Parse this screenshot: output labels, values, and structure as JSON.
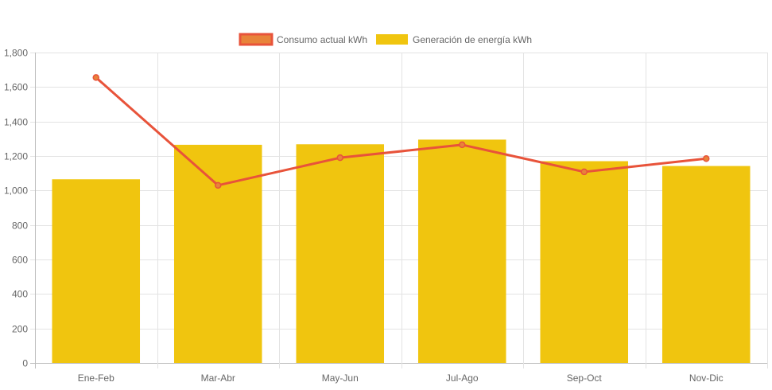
{
  "chart_data": {
    "type": "bar",
    "categories": [
      "Ene-Feb",
      "Mar-Abr",
      "May-Jun",
      "Jul-Ago",
      "Sep-Oct",
      "Nov-Dic"
    ],
    "series": [
      {
        "name": "Consumo actual kWh",
        "type": "line",
        "values": [
          1655,
          1030,
          1190,
          1265,
          1108,
          1185
        ],
        "color": "#e8533a",
        "point_fill": "#e8833a"
      },
      {
        "name": "Generación de energía kWh",
        "type": "bar",
        "values": [
          1065,
          1265,
          1268,
          1295,
          1170,
          1142
        ],
        "color": "#f0c50f"
      }
    ],
    "legend_order": [
      0,
      1
    ],
    "title": "",
    "xlabel": "",
    "ylabel": "",
    "ylim": [
      0,
      1800
    ],
    "y_ticks": [
      "0",
      "200",
      "400",
      "600",
      "800",
      "1,000",
      "1,200",
      "1,400",
      "1,600",
      "1,800"
    ],
    "grid": true,
    "legend_position": "top-center"
  }
}
